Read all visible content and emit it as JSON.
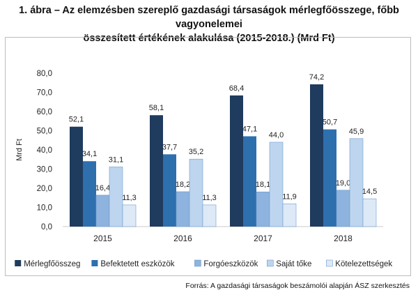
{
  "title_line1": "1. ábra – Az elemzésben szereplő gazdasági társaságok mérlegfőösszege, főbb vagyonelemei",
  "title_line2": "összesített értékének alakulása (2015-2018.) (Mrd Ft)",
  "source": "Forrás: A gazdasági társaságok beszámolói alapján ÁSZ szerkesztés",
  "colors": [
    "#1f3b5e",
    "#2e6fae",
    "#8db3de",
    "#bdd5ee",
    "#dde9f7"
  ],
  "chart_data": {
    "type": "bar",
    "categories": [
      "2015",
      "2016",
      "2017",
      "2018"
    ],
    "series": [
      {
        "name": "Mérlegfőösszeg",
        "values": [
          52.1,
          58.1,
          68.4,
          74.2
        ],
        "labels": [
          "52,1",
          "58,1",
          "68,4",
          "74,2"
        ]
      },
      {
        "name": "Befektetett eszközök",
        "values": [
          34.1,
          37.7,
          47.1,
          50.7
        ],
        "labels": [
          "34,1",
          "37,7",
          "47,1",
          "50,7"
        ]
      },
      {
        "name": "Forgóeszközök",
        "values": [
          16.4,
          18.2,
          18.1,
          19.0
        ],
        "labels": [
          "16,4",
          "18,2",
          "18,1",
          "19,0"
        ]
      },
      {
        "name": "Saját tőke",
        "values": [
          31.1,
          35.2,
          44.0,
          45.9
        ],
        "labels": [
          "31,1",
          "35,2",
          "44,0",
          "45,9"
        ]
      },
      {
        "name": "Kötelezettségek",
        "values": [
          11.3,
          11.3,
          11.9,
          14.5
        ],
        "labels": [
          "11,3",
          "11,3",
          "11,9",
          "14,5"
        ]
      }
    ],
    "ylabel": "Mrd Ft",
    "xlabel": "",
    "ylim": [
      0,
      80
    ],
    "yticks": [
      0,
      10,
      20,
      30,
      40,
      50,
      60,
      70,
      80
    ],
    "ytick_labels": [
      "0,0",
      "10,0",
      "20,0",
      "30,0",
      "40,0",
      "50,0",
      "60,0",
      "70,0",
      "80,0"
    ],
    "grid": false,
    "legend_position": "bottom"
  }
}
